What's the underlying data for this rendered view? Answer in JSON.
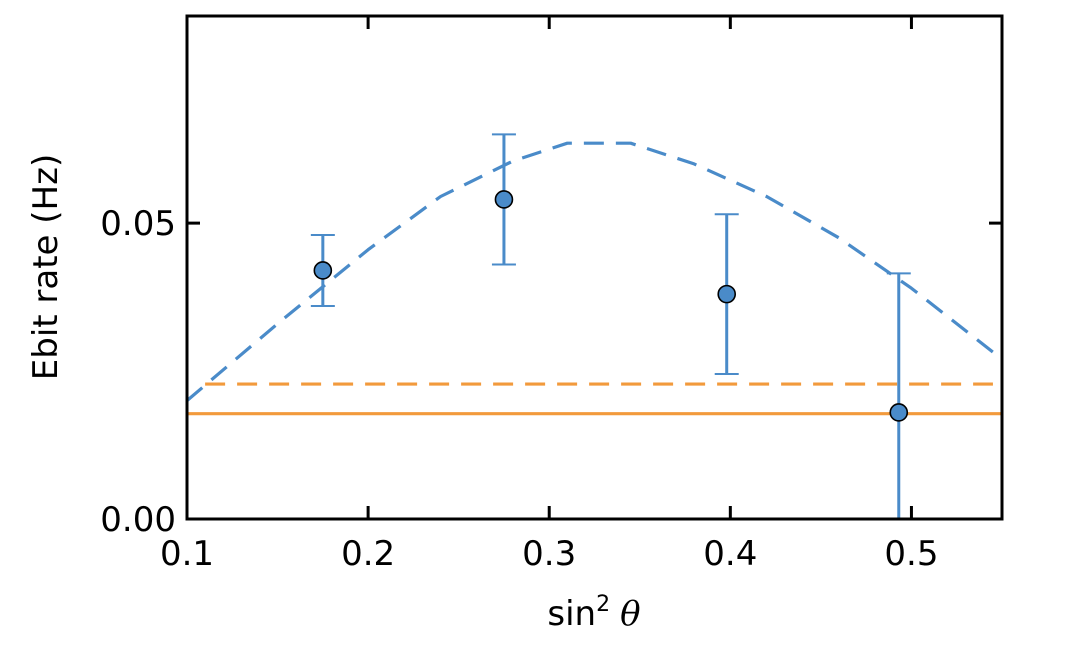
{
  "chart_data": {
    "type": "scatter",
    "title": "",
    "xlabel": {
      "base": "sin",
      "exponent": "2",
      "symbol": "θ"
    },
    "ylabel": "Ebit rate (Hz)",
    "xlim": [
      0.1,
      0.55
    ],
    "ylim": [
      0.0,
      0.085
    ],
    "xticks": [
      0.1,
      0.2,
      0.3,
      0.4,
      0.5
    ],
    "xtick_labels": [
      "0.1",
      "0.2",
      "0.3",
      "0.4",
      "0.5"
    ],
    "yticks": [
      0.0,
      0.05
    ],
    "ytick_labels": [
      "0.00",
      "0.05"
    ],
    "grid": false,
    "legend": "none",
    "series": [
      {
        "kind": "points-with-errorbars",
        "color": "#4a8bc9",
        "x": [
          0.175,
          0.275,
          0.398,
          0.493
        ],
        "y": [
          0.042,
          0.054,
          0.038,
          0.018
        ],
        "err_low": [
          0.036,
          0.043,
          0.0245,
          0.0
        ],
        "err_high": [
          0.048,
          0.065,
          0.0515,
          0.0415
        ]
      },
      {
        "kind": "dashed-curve",
        "color": "#4a8bc9",
        "x": [
          0.1,
          0.15,
          0.2,
          0.24,
          0.28,
          0.31,
          0.345,
          0.38,
          0.42,
          0.46,
          0.5,
          0.55
        ],
        "y": [
          0.02,
          0.033,
          0.0455,
          0.0545,
          0.0605,
          0.0635,
          0.0635,
          0.06,
          0.0545,
          0.0475,
          0.039,
          0.027
        ]
      },
      {
        "kind": "dashed-hline",
        "color": "#f29a3c",
        "x": [
          0.11,
          0.545
        ],
        "y": [
          0.0228,
          0.0228
        ]
      },
      {
        "kind": "solid-hline",
        "color": "#f29a3c",
        "x": [
          0.1,
          0.55
        ],
        "y": [
          0.0178,
          0.0178
        ]
      }
    ]
  }
}
